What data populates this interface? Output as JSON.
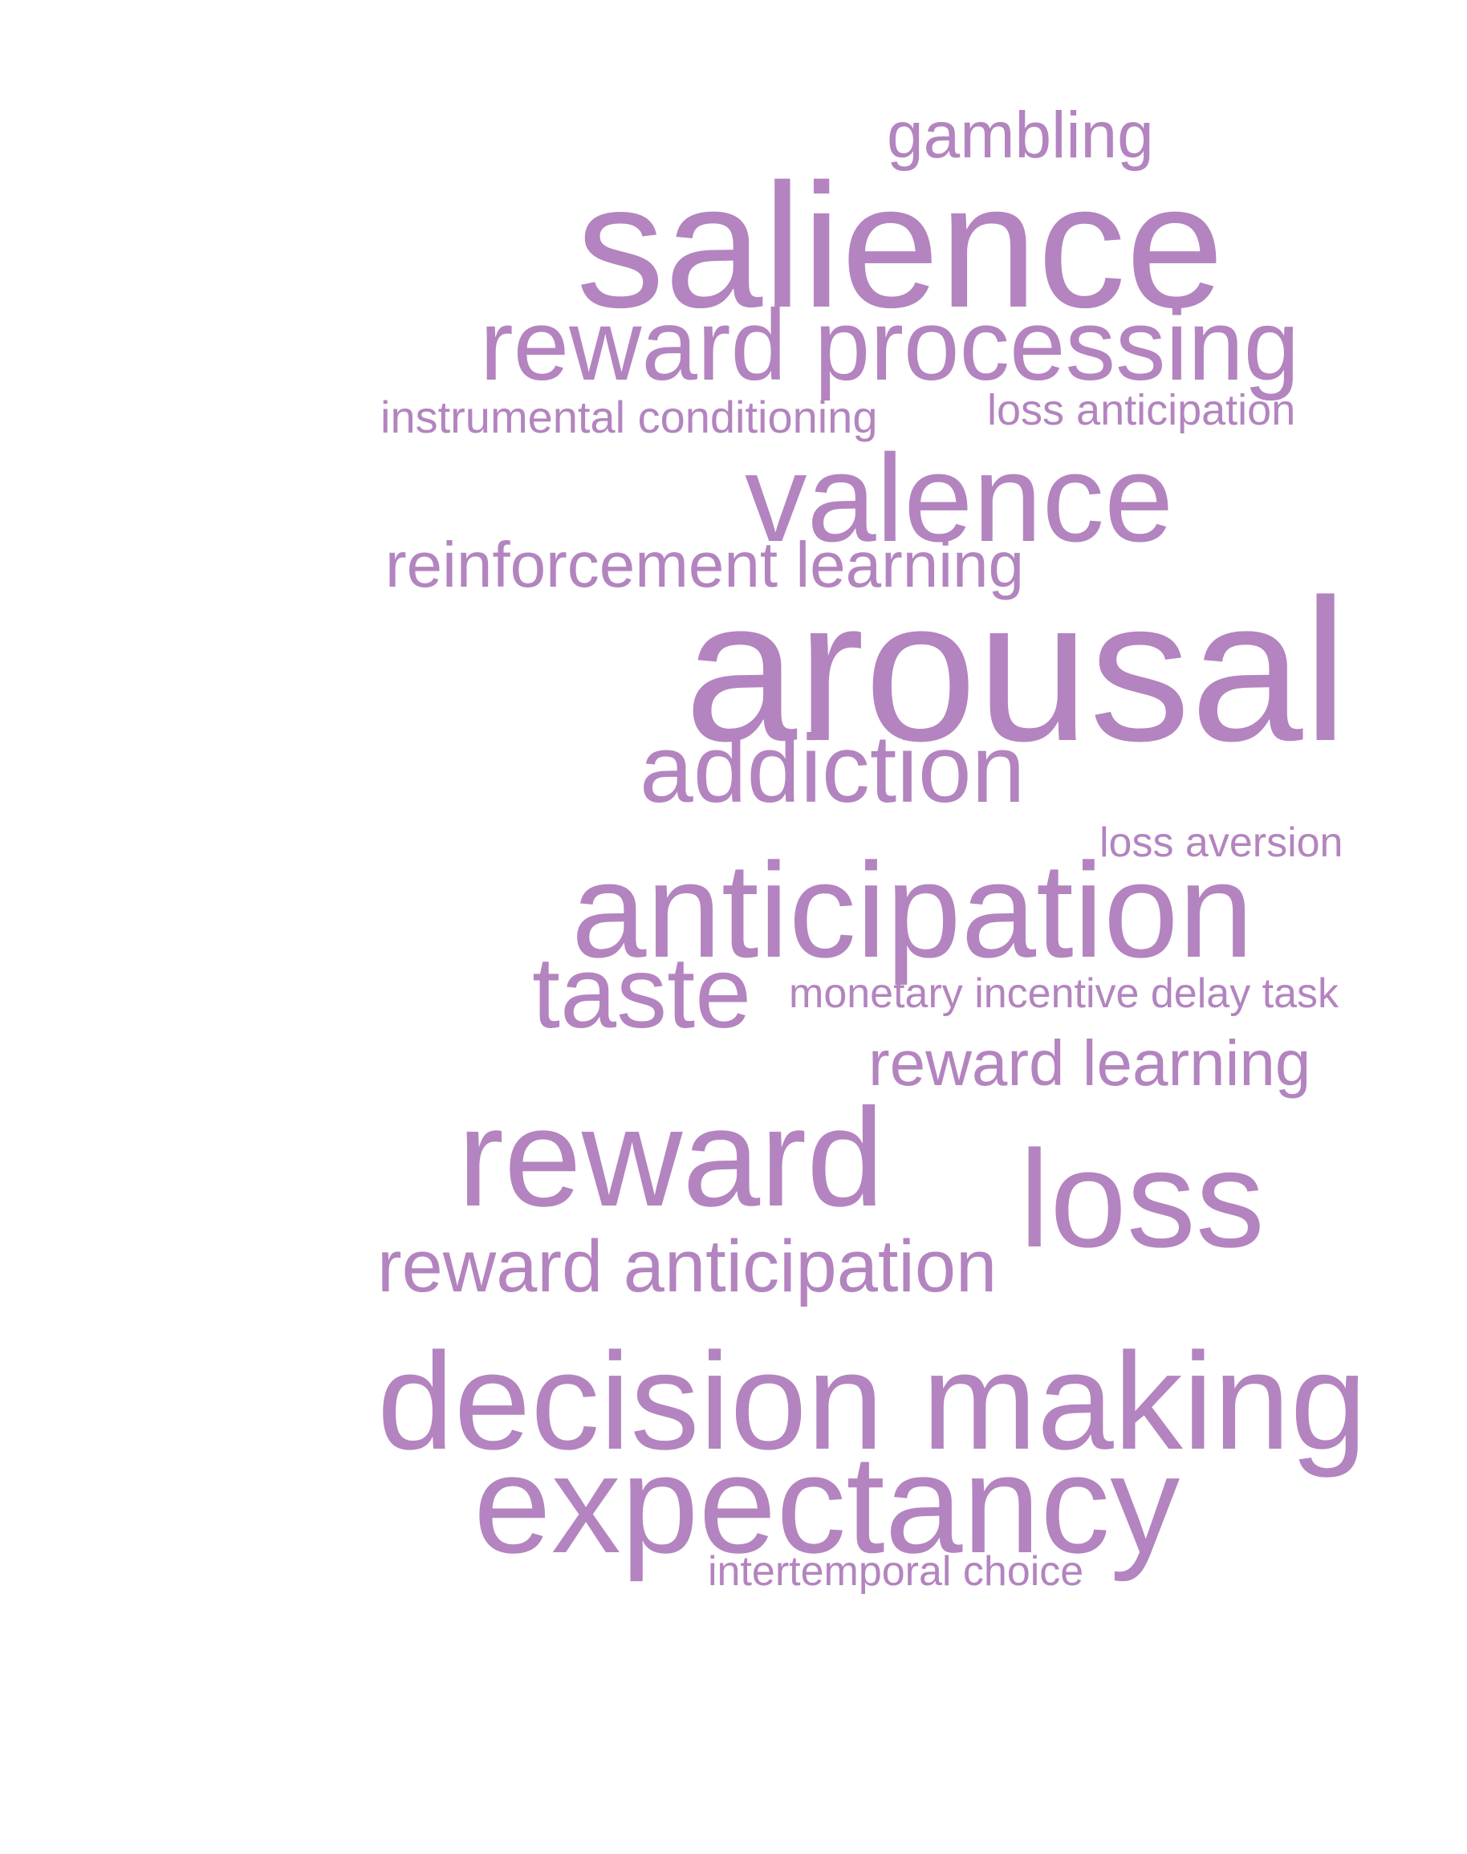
{
  "style": {
    "word_color": "#b384bf",
    "background_color": "#ffffff"
  },
  "words": {
    "gambling": "gambling",
    "salience": "salience",
    "reward_processing": "reward processing",
    "instrumental_conditioning": "instrumental conditioning",
    "loss_anticipation": "loss anticipation",
    "valence": "valence",
    "reinforcement_learning": "reinforcement learning",
    "arousal": "arousal",
    "addiction": "addiction",
    "loss_aversion": "loss aversion",
    "anticipation": "anticipation",
    "taste": "taste",
    "monetary_incentive_delay_task": "monetary incentive delay task",
    "reward_learning": "reward learning",
    "reward": "reward",
    "loss": "loss",
    "reward_anticipation": "reward anticipation",
    "decision_making": "decision making",
    "expectancy": "expectancy",
    "intertemporal_choice": "intertemporal choice"
  }
}
